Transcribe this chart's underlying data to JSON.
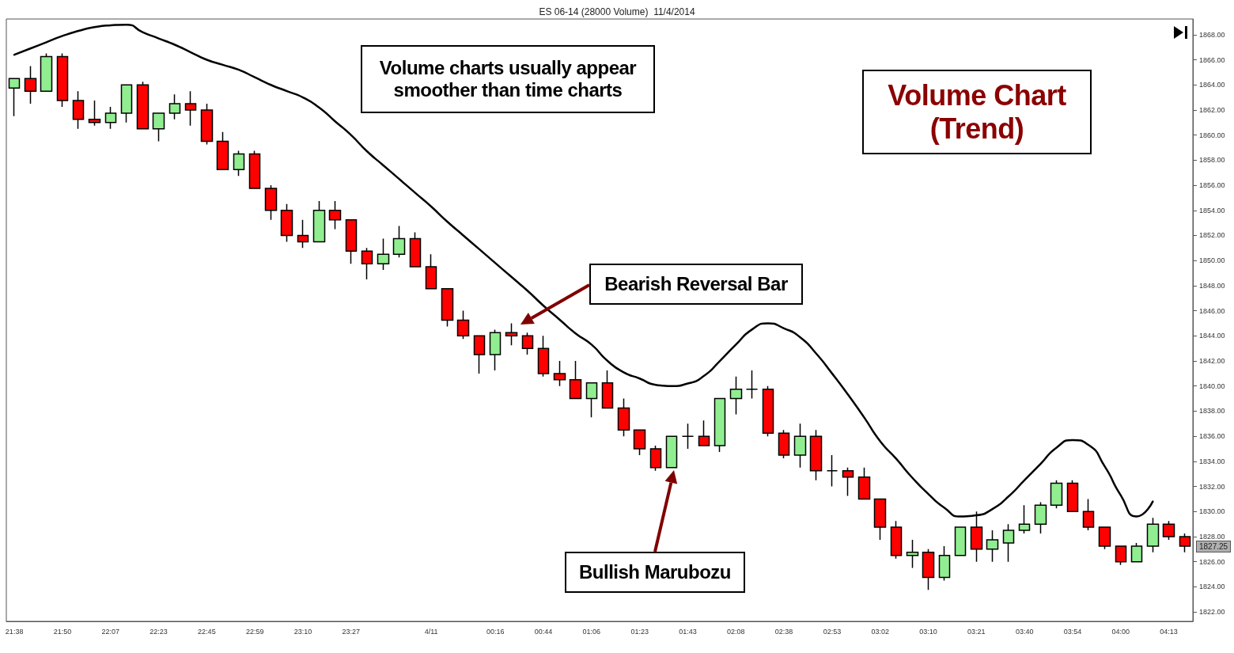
{
  "chart_data": {
    "type": "candlestick",
    "title": "ES 06-14 (28000 Volume)  11/4/2014",
    "categories": [
      "21:38",
      null,
      null,
      "21:50",
      null,
      null,
      "22:07",
      null,
      null,
      "22:23",
      null,
      null,
      "22:45",
      null,
      null,
      "22:59",
      null,
      null,
      "23:10",
      null,
      null,
      "23:27",
      null,
      null,
      null,
      null,
      "4/11",
      null,
      null,
      null,
      "00:16",
      null,
      null,
      "00:44",
      null,
      null,
      "01:06",
      null,
      null,
      "01:23",
      null,
      null,
      "01:43",
      null,
      null,
      "02:08",
      null,
      null,
      "02:38",
      null,
      null,
      "02:53",
      null,
      null,
      "03:02",
      null,
      null,
      "03:10",
      null,
      null,
      "03:21",
      null,
      null,
      "03:40",
      null,
      null,
      "03:54",
      null,
      null,
      "04:00",
      null,
      null,
      "04:13",
      null
    ],
    "ohlc": [
      [
        1863.75,
        1864.5,
        1861.5,
        1864.5
      ],
      [
        1864.5,
        1865.5,
        1862.5,
        1863.5
      ],
      [
        1863.5,
        1866.5,
        1863.5,
        1866.25
      ],
      [
        1866.25,
        1866.5,
        1862.25,
        1862.75
      ],
      [
        1862.75,
        1863.5,
        1860.5,
        1861.25
      ],
      [
        1861.25,
        1862.75,
        1860.75,
        1861
      ],
      [
        1861,
        1862.25,
        1860.5,
        1861.75
      ],
      [
        1861.75,
        1864,
        1861,
        1864
      ],
      [
        1864,
        1864.25,
        1860.5,
        1860.5
      ],
      [
        1860.5,
        1861.75,
        1859.5,
        1861.75
      ],
      [
        1861.75,
        1863.25,
        1861.25,
        1862.5
      ],
      [
        1862.5,
        1863.5,
        1860.75,
        1862
      ],
      [
        1862,
        1862.5,
        1859.25,
        1859.5
      ],
      [
        1859.5,
        1860.25,
        1857.25,
        1857.25
      ],
      [
        1857.25,
        1858.75,
        1856.75,
        1858.5
      ],
      [
        1858.5,
        1858.75,
        1855.75,
        1855.75
      ],
      [
        1855.75,
        1856,
        1853.25,
        1854
      ],
      [
        1854,
        1854.5,
        1851.5,
        1852
      ],
      [
        1852,
        1853.25,
        1851,
        1851.5
      ],
      [
        1851.5,
        1854.75,
        1851.5,
        1854
      ],
      [
        1854,
        1854.75,
        1852.5,
        1853.25
      ],
      [
        1853.25,
        1853.25,
        1849.75,
        1850.75
      ],
      [
        1850.75,
        1851,
        1848.5,
        1849.75
      ],
      [
        1849.75,
        1851.75,
        1849.25,
        1850.5
      ],
      [
        1850.5,
        1852.75,
        1850.25,
        1851.75
      ],
      [
        1851.75,
        1852.25,
        1849.5,
        1849.5
      ],
      [
        1849.5,
        1850.5,
        1847.75,
        1847.75
      ],
      [
        1847.75,
        1847.75,
        1844.75,
        1845.25
      ],
      [
        1845.25,
        1846,
        1843.75,
        1844
      ],
      [
        1844,
        1844,
        1841,
        1842.5
      ],
      [
        1842.5,
        1844.5,
        1841.25,
        1844.25
      ],
      [
        1844.25,
        1845,
        1843.25,
        1844
      ],
      [
        1844,
        1844.25,
        1842.5,
        1843
      ],
      [
        1843,
        1844,
        1840.75,
        1841
      ],
      [
        1841,
        1842,
        1840,
        1840.5
      ],
      [
        1840.5,
        1842,
        1839,
        1839
      ],
      [
        1839,
        1840.25,
        1837.5,
        1840.25
      ],
      [
        1840.25,
        1841.25,
        1838.25,
        1838.25
      ],
      [
        1838.25,
        1839,
        1836,
        1836.5
      ],
      [
        1836.5,
        1836.5,
        1834.5,
        1835
      ],
      [
        1835,
        1835.25,
        1833.25,
        1833.5
      ],
      [
        1833.5,
        1836,
        1833.5,
        1836
      ],
      [
        1836,
        1837,
        1835,
        1836
      ],
      [
        1836,
        1837.25,
        1835.25,
        1835.25
      ],
      [
        1835.25,
        1839,
        1834.75,
        1839
      ],
      [
        1839,
        1840.75,
        1837.75,
        1839.75
      ],
      [
        1839.75,
        1841.25,
        1839,
        1839.75
      ],
      [
        1839.75,
        1840,
        1836,
        1836.25
      ],
      [
        1836.25,
        1836.5,
        1834.25,
        1834.5
      ],
      [
        1834.5,
        1837,
        1833.5,
        1836
      ],
      [
        1836,
        1836.5,
        1832.5,
        1833.25
      ],
      [
        1833.25,
        1834.5,
        1832,
        1833.25
      ],
      [
        1833.25,
        1833.5,
        1831.25,
        1832.75
      ],
      [
        1832.75,
        1833.5,
        1831,
        1831
      ],
      [
        1831,
        1831,
        1827.75,
        1828.75
      ],
      [
        1828.75,
        1829.25,
        1826.25,
        1826.5
      ],
      [
        1826.5,
        1827.75,
        1825.5,
        1826.75
      ],
      [
        1826.75,
        1827,
        1823.75,
        1824.75
      ],
      [
        1824.75,
        1827.25,
        1824.5,
        1826.5
      ],
      [
        1826.5,
        1828.75,
        1826.5,
        1828.75
      ],
      [
        1828.75,
        1830,
        1826,
        1827
      ],
      [
        1827,
        1828.5,
        1826,
        1827.75
      ],
      [
        1827.5,
        1829,
        1826,
        1828.5
      ],
      [
        1828.5,
        1830.5,
        1828.25,
        1829
      ],
      [
        1829,
        1830.75,
        1828.25,
        1830.5
      ],
      [
        1830.5,
        1832.5,
        1830.25,
        1832.25
      ],
      [
        1832.25,
        1832.5,
        1830,
        1830
      ],
      [
        1830,
        1831,
        1828.5,
        1828.75
      ],
      [
        1828.75,
        1828.75,
        1827,
        1827.25
      ],
      [
        1827.25,
        1827.25,
        1825.75,
        1826
      ],
      [
        1826,
        1827.5,
        1826,
        1827.25
      ],
      [
        1827.25,
        1829.5,
        1826.75,
        1829
      ],
      [
        1829,
        1829.25,
        1827.75,
        1828
      ],
      [
        1828,
        1828.25,
        1826.75,
        1827.25
      ]
    ],
    "colors": [
      "#90ee90",
      "#ff0000",
      "#90ee90",
      "#ff0000",
      "#ff0000",
      "#ff0000",
      "#90ee90",
      "#90ee90",
      "#ff0000",
      "#90ee90",
      "#90ee90",
      "#ff0000",
      "#ff0000",
      "#ff0000",
      "#90ee90",
      "#ff0000",
      "#ff0000",
      "#ff0000",
      "#ff0000",
      "#90ee90",
      "#ff0000",
      "#ff0000",
      "#ff0000",
      "#90ee90",
      "#90ee90",
      "#ff0000",
      "#ff0000",
      "#ff0000",
      "#ff0000",
      "#ff0000",
      "#90ee90",
      "#ff0000",
      "#ff0000",
      "#ff0000",
      "#ff0000",
      "#ff0000",
      "#90ee90",
      "#ff0000",
      "#ff0000",
      "#ff0000",
      "#ff0000",
      "#90ee90",
      "#000000",
      "#ff0000",
      "#90ee90",
      "#90ee90",
      "#000000",
      "#ff0000",
      "#ff0000",
      "#90ee90",
      "#ff0000",
      "#000000",
      "#ff0000",
      "#ff0000",
      "#ff0000",
      "#ff0000",
      "#90ee90",
      "#ff0000",
      "#90ee90",
      "#90ee90",
      "#ff0000",
      "#90ee90",
      "#90ee90",
      "#90ee90",
      "#90ee90",
      "#90ee90",
      "#ff0000",
      "#ff0000",
      "#ff0000",
      "#ff0000",
      "#90ee90",
      "#90ee90",
      "#ff0000",
      "#ff0000"
    ],
    "series": [
      {
        "type": "line",
        "color": "#000000",
        "values": [
          1866.4,
          1866.9,
          1867.4,
          1867.9,
          1868.3,
          1868.6,
          1868.75,
          1868.8,
          1868.2,
          1867.7,
          1867.2,
          1866.6,
          1866.0,
          1865.6,
          1865.2,
          1864.6,
          1864.0,
          1863.5,
          1863.0,
          1862.2,
          1861.1,
          1860.0,
          1858.7,
          1857.6,
          1856.5,
          1855.4,
          1854.3,
          1853.1,
          1852.0,
          1850.9,
          1849.8,
          1848.7,
          1847.6,
          1846.4,
          1845.3,
          1844.2,
          1843.3,
          1842.0,
          1841.1,
          1840.6,
          1840.1,
          1840.0,
          1840.2,
          1840.8,
          1842.0,
          1843.3,
          1844.5,
          1845.0,
          1844.6,
          1843.9,
          1842.6,
          1841.0,
          1839.3,
          1837.5,
          1835.6,
          1834.2,
          1832.7,
          1831.4,
          1830.3,
          1829.6,
          1829.7,
          1830.2,
          1831.2,
          1832.5,
          1833.8,
          1835.1,
          1835.7,
          1835.3,
          1833.6,
          1831.3,
          1829.6,
          1830.8,
          null,
          null
        ]
      }
    ],
    "ylim": [
      1821.25,
      1869.25
    ],
    "yticks": [
      {
        "value": 1822,
        "label": "1822.00"
      },
      {
        "value": 1824,
        "label": "1824.00"
      },
      {
        "value": 1826,
        "label": "1826.00"
      },
      {
        "value": 1828,
        "label": "1828.00"
      },
      {
        "value": 1830,
        "label": "1830.00"
      },
      {
        "value": 1832,
        "label": "1832.00"
      },
      {
        "value": 1834,
        "label": "1834.00"
      },
      {
        "value": 1836,
        "label": "1836.00"
      },
      {
        "value": 1838,
        "label": "1838.00"
      },
      {
        "value": 1840,
        "label": "1840.00"
      },
      {
        "value": 1842,
        "label": "1842.00"
      },
      {
        "value": 1844,
        "label": "1844.00"
      },
      {
        "value": 1846,
        "label": "1846.00"
      },
      {
        "value": 1848,
        "label": "1848.00"
      },
      {
        "value": 1850,
        "label": "1850.00"
      },
      {
        "value": 1852,
        "label": "1852.00"
      },
      {
        "value": 1854,
        "label": "1854.00"
      },
      {
        "value": 1856,
        "label": "1856.00"
      },
      {
        "value": 1858,
        "label": "1858.00"
      },
      {
        "value": 1860,
        "label": "1860.00"
      },
      {
        "value": 1862,
        "label": "1862.00"
      },
      {
        "value": 1864,
        "label": "1864.00"
      },
      {
        "value": 1866,
        "label": "1866.00"
      },
      {
        "value": 1868,
        "label": "1868.00"
      }
    ],
    "annotations": [
      "Volume charts usually appear smoother than time charts",
      "Volume Chart (Trend)",
      "Bearish Reversal Bar",
      "Bullish Marubozu",
      "1827.25"
    ]
  }
}
